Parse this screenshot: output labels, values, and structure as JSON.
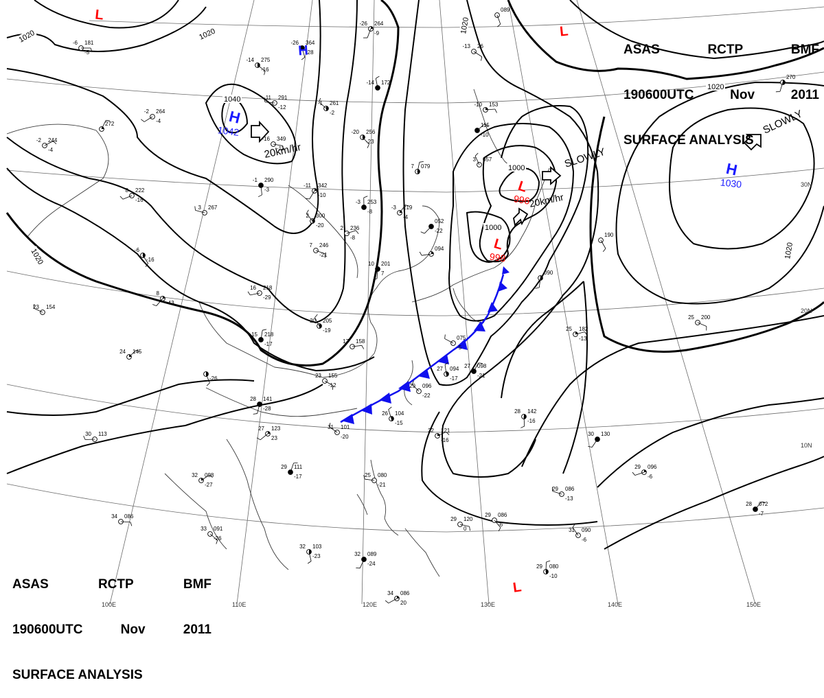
{
  "header_top": {
    "line1": [
      "ASAS",
      "RCTP",
      "BMF"
    ],
    "line2": [
      "190600UTC",
      "Nov",
      "2011"
    ],
    "line3": "SURFACE ANALYSIS"
  },
  "header_bottom": {
    "line1": [
      "ASAS",
      "RCTP",
      "BMF"
    ],
    "line2": [
      "190600UTC",
      "Nov",
      "2011"
    ],
    "line3": "SURFACE ANALYSIS"
  },
  "colors": {
    "high": "#1a1aff",
    "low": "#ff0000",
    "front": "#1010ee",
    "isobar": "#000000",
    "grid": "#555555",
    "coast": "#333333"
  },
  "longitude_labels": [
    "100E",
    "110E",
    "120E",
    "130E",
    "140E",
    "150E"
  ],
  "latitude_labels": [
    "30N",
    "20N",
    "10N"
  ],
  "isobar_labels": [
    "1020",
    "1020",
    "1040",
    "1020",
    "1020",
    "1020",
    "1000",
    "1000",
    "1020"
  ],
  "pressure_centers": [
    {
      "type": "L",
      "value": ""
    },
    {
      "type": "H",
      "value": ""
    },
    {
      "type": "H",
      "value": "1042"
    },
    {
      "type": "L",
      "value": "996"
    },
    {
      "type": "L",
      "value": "998"
    },
    {
      "type": "H",
      "value": "1030"
    },
    {
      "type": "L",
      "value": ""
    },
    {
      "type": "L",
      "value": ""
    }
  ],
  "movements": [
    {
      "text": "20km/hr"
    },
    {
      "text": "SLOWLY"
    },
    {
      "text": "20km/hr"
    },
    {
      "text": "SLOWLY"
    }
  ],
  "stations": [
    {
      "t": "-6",
      "p": "181",
      "td": "-5"
    },
    {
      "t": "-14",
      "p": "275",
      "td": "-16"
    },
    {
      "t": "-26",
      "p": "364",
      "td": "-28"
    },
    {
      "t": "-26",
      "p": "264",
      "td": "-9"
    },
    {
      "t": "-2",
      "p": "264",
      "td": "-4"
    },
    {
      "t": "-11",
      "p": "291",
      "td": "-12"
    },
    {
      "t": "-1",
      "p": "261",
      "td": "-2"
    },
    {
      "t": "-14",
      "p": "172",
      "td": ""
    },
    {
      "t": "",
      "p": "272",
      "td": ""
    },
    {
      "t": "-2",
      "p": "244",
      "td": "-4"
    },
    {
      "t": "-16",
      "p": "349",
      "td": "-11"
    },
    {
      "t": "-20",
      "p": "256",
      "td": "-23"
    },
    {
      "t": "-1",
      "p": "290",
      "td": "-3"
    },
    {
      "t": "-11",
      "p": "342",
      "td": "-10"
    },
    {
      "t": "8",
      "p": "222",
      "td": "-16"
    },
    {
      "t": "3",
      "p": "267",
      "td": ""
    },
    {
      "t": "2",
      "p": "300",
      "td": "-20"
    },
    {
      "t": "-3",
      "p": "253",
      "td": "-8"
    },
    {
      "t": "-3",
      "p": "219",
      "td": "-4"
    },
    {
      "t": "2",
      "p": "236",
      "td": "-8"
    },
    {
      "t": "7",
      "p": "246",
      "td": "-21"
    },
    {
      "t": "-6",
      "p": "",
      "td": "-16"
    },
    {
      "t": "10",
      "p": "201",
      "td": "7"
    },
    {
      "t": "8",
      "p": "",
      "td": "-43"
    },
    {
      "t": "16",
      "p": "218",
      "td": "-29"
    },
    {
      "t": "23",
      "p": "154",
      "td": ""
    },
    {
      "t": "20",
      "p": "205",
      "td": "-19"
    },
    {
      "t": "15",
      "p": "218",
      "td": "-17"
    },
    {
      "t": "24",
      "p": "145",
      "td": ""
    },
    {
      "t": "17",
      "p": "158",
      "td": ""
    },
    {
      "t": "23",
      "p": "155",
      "td": "-12"
    },
    {
      "t": "",
      "p": "",
      "td": "-26"
    },
    {
      "t": "28",
      "p": "141",
      "td": "-28"
    },
    {
      "t": "27",
      "p": "123",
      "td": "23"
    },
    {
      "t": "30",
      "p": "113",
      "td": ""
    },
    {
      "t": "31",
      "p": "101",
      "td": "-20"
    },
    {
      "t": "26",
      "p": "104",
      "td": "-15"
    },
    {
      "t": "29",
      "p": "111",
      "td": "-17"
    },
    {
      "t": "32",
      "p": "098",
      "td": "-27"
    },
    {
      "t": "34",
      "p": "086",
      "td": ""
    },
    {
      "t": "33",
      "p": "091",
      "td": "-26"
    },
    {
      "t": "32",
      "p": "103",
      "td": "-23"
    },
    {
      "t": "32",
      "p": "089",
      "td": "-24"
    },
    {
      "t": "34",
      "p": "086",
      "td": "20"
    },
    {
      "t": "25",
      "p": "080",
      "td": "-21"
    },
    {
      "t": "29",
      "p": "096",
      "td": "-22"
    },
    {
      "t": "27",
      "p": "094",
      "td": "-17"
    },
    {
      "t": "27",
      "p": "098",
      "td": "-21"
    },
    {
      "t": "32",
      "p": "121",
      "td": "-16"
    },
    {
      "t": "29",
      "p": "120",
      "td": "0"
    },
    {
      "t": "29",
      "p": "086",
      "td": "-6"
    },
    {
      "t": "28",
      "p": "142",
      "td": "-16"
    },
    {
      "t": "30",
      "p": "130",
      "td": ""
    },
    {
      "t": "29",
      "p": "096",
      "td": "-6"
    },
    {
      "t": "29",
      "p": "086",
      "td": "-13"
    },
    {
      "t": "31",
      "p": "090",
      "td": "-6"
    },
    {
      "t": "29",
      "p": "080",
      "td": "-10"
    },
    {
      "t": "28",
      "p": "072",
      "td": "-7"
    },
    {
      "t": "25",
      "p": "182",
      "td": "-13"
    },
    {
      "t": "25",
      "p": "200",
      "td": ""
    },
    {
      "t": "",
      "p": "190",
      "td": ""
    },
    {
      "t": "",
      "p": "090",
      "td": ""
    },
    {
      "t": "",
      "p": "052",
      "td": "-22"
    },
    {
      "t": "",
      "p": "094",
      "td": ""
    },
    {
      "t": "",
      "p": "075",
      "td": "-5"
    },
    {
      "t": "3",
      "p": "057",
      "td": ""
    },
    {
      "t": "7",
      "p": "079",
      "td": ""
    },
    {
      "t": "",
      "p": "115",
      "td": "-10"
    },
    {
      "t": "-10",
      "p": "153",
      "td": ""
    },
    {
      "t": "-13",
      "p": "26",
      "td": ""
    },
    {
      "t": "",
      "p": "089",
      "td": ""
    },
    {
      "t": "",
      "p": "270",
      "td": ""
    }
  ]
}
